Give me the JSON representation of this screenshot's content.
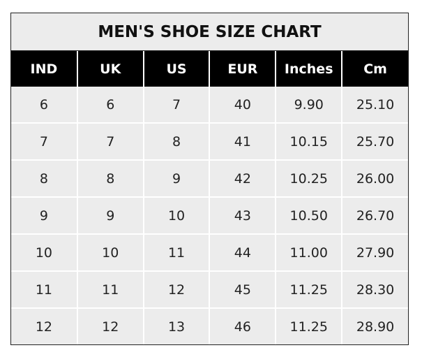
{
  "title": "MEN'S SHOE SIZE CHART",
  "columns": [
    "IND",
    "UK",
    "US",
    "EUR",
    "Inches",
    "Cm"
  ],
  "rows": [
    [
      "6",
      "6",
      "7",
      "40",
      "9.90",
      "25.10"
    ],
    [
      "7",
      "7",
      "8",
      "41",
      "10.15",
      "25.70"
    ],
    [
      "8",
      "8",
      "9",
      "42",
      "10.25",
      "26.00"
    ],
    [
      "9",
      "9",
      "10",
      "43",
      "10.50",
      "26.70"
    ],
    [
      "10",
      "10",
      "11",
      "44",
      "11.00",
      "27.90"
    ],
    [
      "11",
      "11",
      "12",
      "45",
      "11.25",
      "28.30"
    ],
    [
      "12",
      "12",
      "13",
      "46",
      "11.25",
      "28.90"
    ]
  ],
  "colors": {
    "header_bg": "#000000",
    "header_text": "#ffffff",
    "cell_bg": "#ececec",
    "grid": "#ffffff"
  }
}
